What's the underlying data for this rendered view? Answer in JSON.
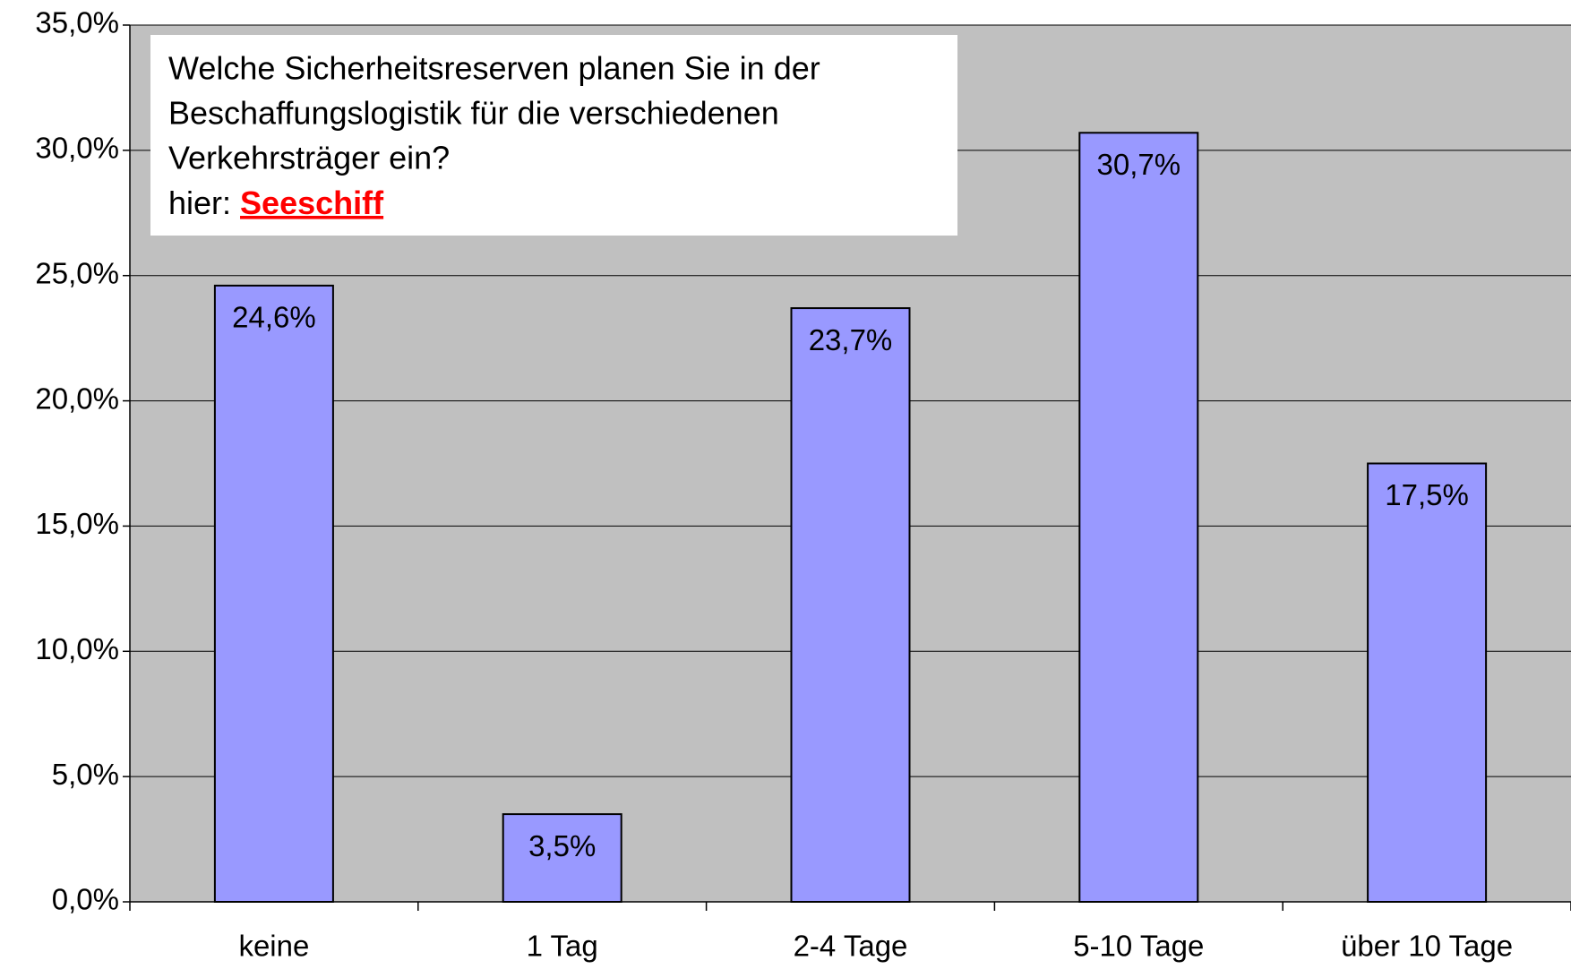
{
  "chart_data": {
    "type": "bar",
    "annotation": {
      "lines": [
        "Welche Sicherheitsreserven planen Sie in der",
        "Beschaffungslogistik für die verschiedenen",
        "Verkehrsträger ein?"
      ],
      "prefix": "hier:",
      "highlight": "Seeschiff"
    },
    "categories": [
      "keine",
      "1 Tag",
      "2-4 Tage",
      "5-10 Tage",
      "über 10 Tage"
    ],
    "values": [
      24.6,
      3.5,
      23.7,
      30.7,
      17.5
    ],
    "value_labels": [
      "24,6%",
      "3,5%",
      "23,7%",
      "30,7%",
      "17,5%"
    ],
    "color": "#9999ff",
    "ylim": [
      0,
      35
    ],
    "yticks": [
      {
        "value": 0,
        "label": "0,0%"
      },
      {
        "value": 5,
        "label": "5,0%"
      },
      {
        "value": 10,
        "label": "10,0%"
      },
      {
        "value": 15,
        "label": "15,0%"
      },
      {
        "value": 20,
        "label": "20,0%"
      },
      {
        "value": 25,
        "label": "25,0%"
      },
      {
        "value": 30,
        "label": "30,0%"
      },
      {
        "value": 35,
        "label": "35,0%"
      }
    ],
    "grid": true
  }
}
